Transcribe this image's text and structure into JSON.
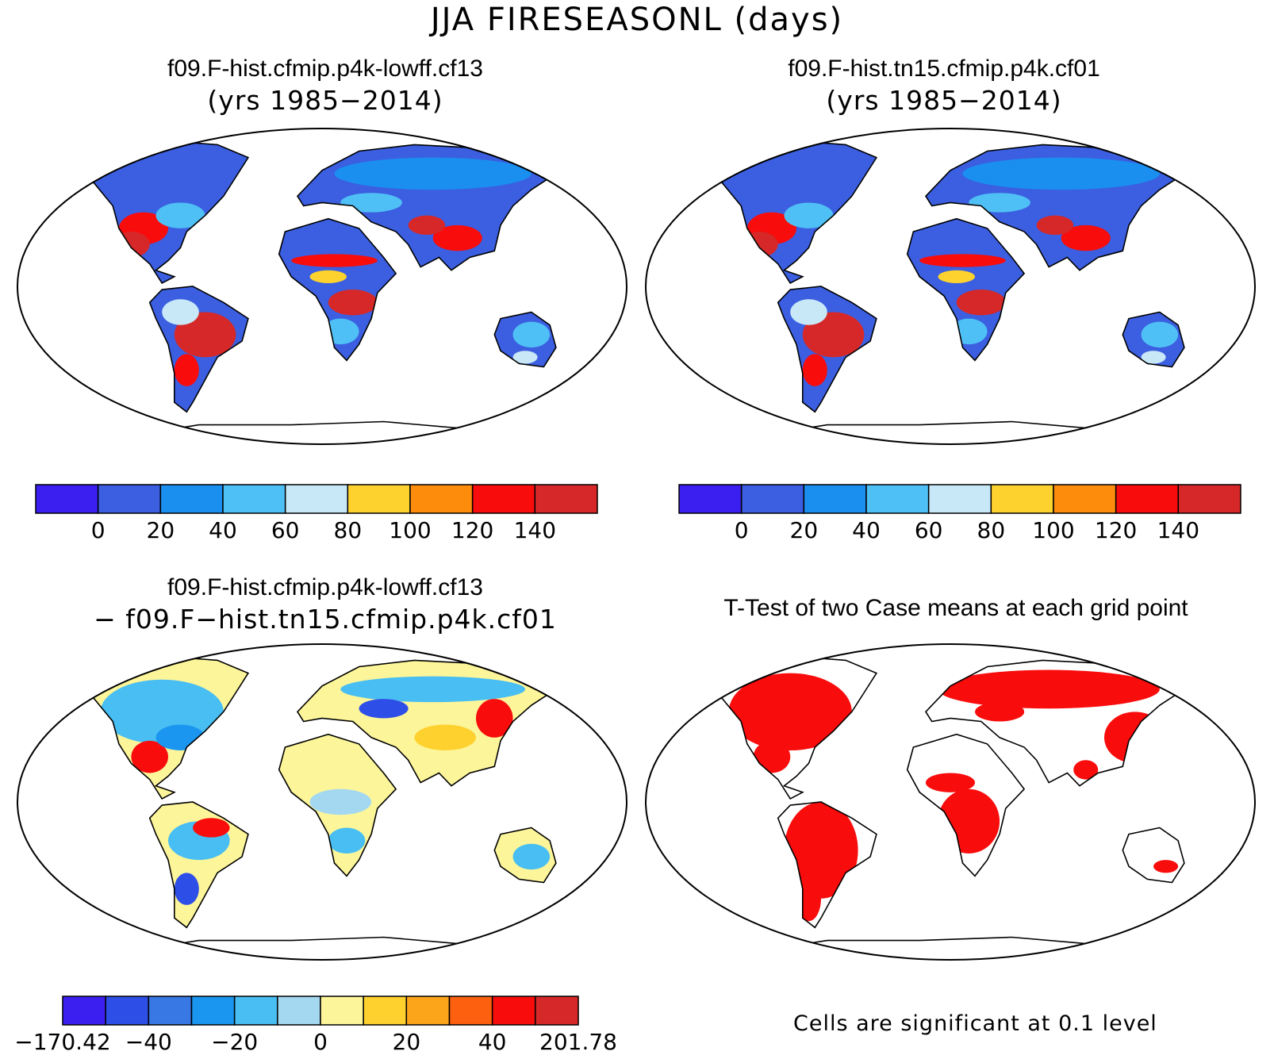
{
  "title": "JJA FIRESEASONL (days)",
  "panels": [
    {
      "id": "p1",
      "line1": "f09.F-hist.cfmip.p4k-lowff.cf13",
      "line2": "(yrs 1985−2014)",
      "field": "case"
    },
    {
      "id": "p2",
      "line1": "f09.F-hist.tn15.cfmip.p4k.cf01",
      "line2": "(yrs 1985−2014)",
      "field": "case"
    },
    {
      "id": "p3",
      "line1": "f09.F-hist.cfmip.p4k-lowff.cf13",
      "line2": "− f09.F−hist.tn15.cfmip.p4k.cf01",
      "field": "diff"
    },
    {
      "id": "p4",
      "line1": "T-Test of two Case means at each grid point",
      "line2": "",
      "field": "ttest"
    }
  ],
  "colorbars": {
    "case": {
      "colors": [
        "#3a1ff0",
        "#3b5fe0",
        "#1a8ff0",
        "#4fc0f5",
        "#c8e8f8",
        "#fdd22e",
        "#fd8c0c",
        "#f80c0c",
        "#d62828"
      ],
      "labels": [
        "0",
        "20",
        "40",
        "60",
        "80",
        "100",
        "120",
        "140"
      ]
    },
    "diff": {
      "colors": [
        "#3a1ff0",
        "#2e4ee8",
        "#3878e4",
        "#1a96f0",
        "#48bef2",
        "#a4d8f0",
        "#fcf59a",
        "#fed12e",
        "#fda51a",
        "#fd600e",
        "#f80c0c",
        "#d62828"
      ],
      "labels": [
        "−170.42",
        "−40",
        "−20",
        "0",
        "20",
        "40",
        "201.78"
      ]
    }
  },
  "ttest": {
    "color": "#f80c0c",
    "note": "Cells are significant at 0.1 level"
  }
}
